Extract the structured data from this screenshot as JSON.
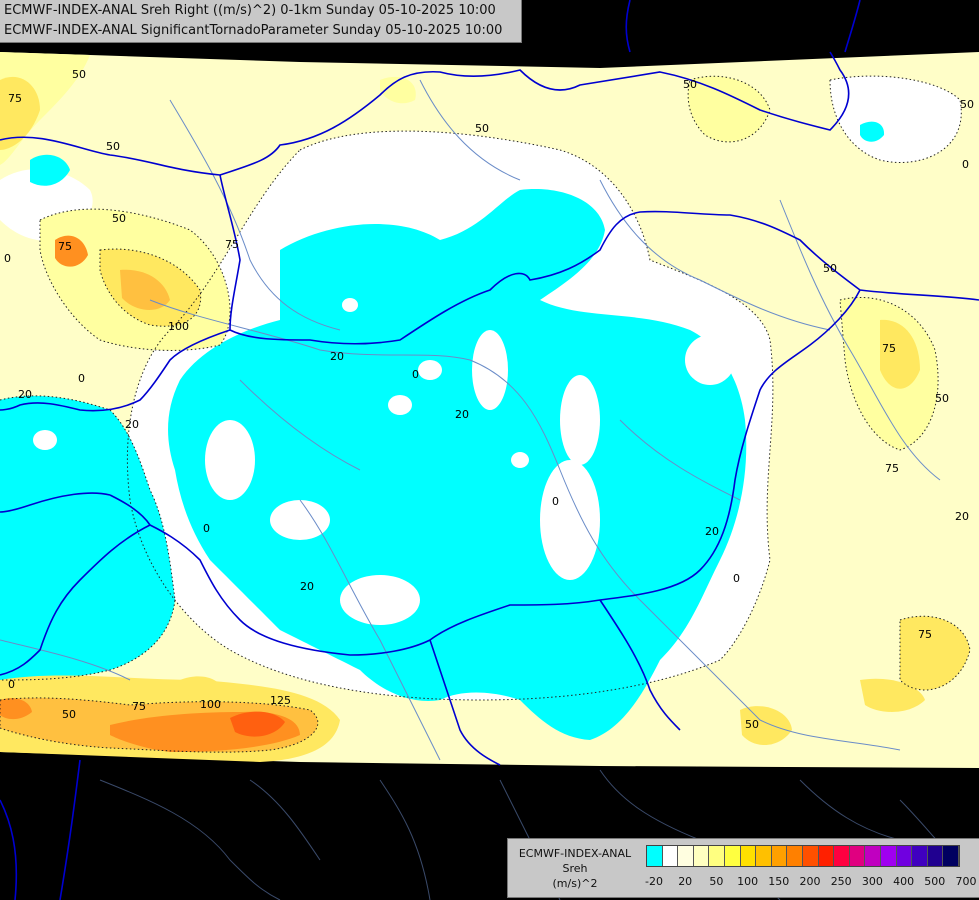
{
  "header": {
    "line1": "ECMWF-INDEX-ANAL Sreh Right ((m/s)^2) 0-1km Sunday 05-10-2025 10:00",
    "line2": "ECMWF-INDEX-ANAL SignificantTornadoParameter Sunday 05-10-2025 10:00"
  },
  "legend": {
    "title_line1": "ECMWF-INDEX-ANAL",
    "title_line2": "Sreh",
    "title_line3": "(m/s)^2",
    "colors": [
      "#00ffff",
      "#ffffff",
      "#fffee0",
      "#ffffc0",
      "#ffff80",
      "#ffff40",
      "#ffe000",
      "#ffc000",
      "#ffa000",
      "#ff8000",
      "#ff5000",
      "#ff2000",
      "#ff0040",
      "#e00080",
      "#c000c0",
      "#a000f0",
      "#7000e0",
      "#4000c0",
      "#200090",
      "#000060"
    ],
    "ticks": [
      "-20",
      "20",
      "50",
      "100",
      "150",
      "200",
      "250",
      "300",
      "400",
      "500",
      "700"
    ]
  },
  "contour_labels": [
    "75",
    "50",
    "50",
    "50",
    "50",
    "75",
    "75",
    "50",
    "100",
    "0",
    "20",
    "20",
    "20",
    "0",
    "20",
    "0",
    "0",
    "20",
    "20",
    "0",
    "50",
    "75",
    "100",
    "125",
    "0",
    "50",
    "75",
    "50",
    "75",
    "50",
    "0",
    "20",
    "75",
    "50",
    "0"
  ],
  "fill_colors": {
    "background": "#000000",
    "domain_base": "#fffec8",
    "neutral": "#ffffff",
    "negative_srh": "#00ffff",
    "light_yellow": "#ffffa0",
    "yellow": "#ffe860",
    "orange_light": "#ffc040",
    "orange": "#ff9020",
    "orange_dark": "#ff6010",
    "border_blue": "#0000d0",
    "river_blue": "#6a8cc8"
  }
}
